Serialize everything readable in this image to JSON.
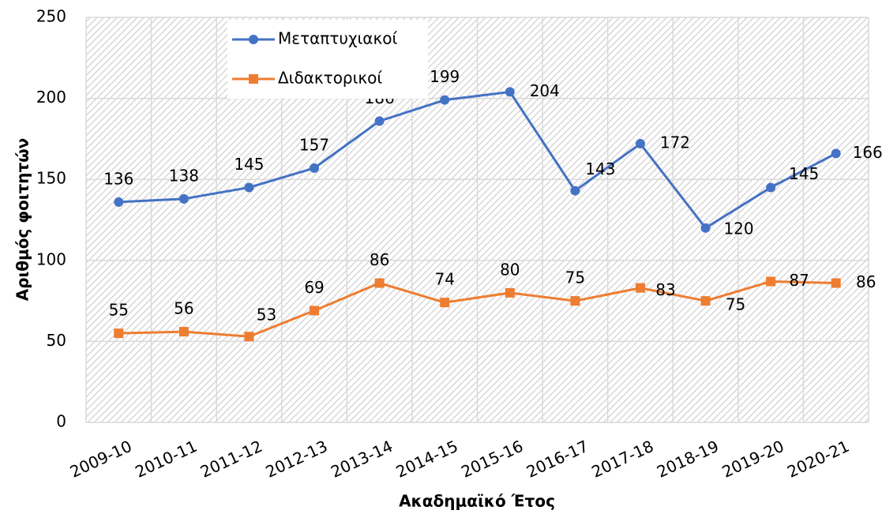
{
  "chart_data": {
    "type": "line",
    "xlabel": "Ακαδημαϊκό Έτος",
    "ylabel": "Αριθμός φοιτητών",
    "categories": [
      "2009-10",
      "2010-11",
      "2011-12",
      "2012-13",
      "2013-14",
      "2014-15",
      "2015-16",
      "2016-17",
      "2017-18",
      "2018-19",
      "2019-20",
      "2020-21"
    ],
    "series": [
      {
        "name": "Μεταπτυχιακοί",
        "color": "#4472c4",
        "marker": "circle",
        "values": [
          136,
          138,
          145,
          157,
          186,
          199,
          204,
          143,
          172,
          120,
          145,
          166
        ]
      },
      {
        "name": "Διδακτορικοί",
        "color": "#ed7d31",
        "marker": "square",
        "values": [
          55,
          56,
          53,
          69,
          86,
          74,
          80,
          75,
          83,
          75,
          87,
          86
        ]
      }
    ],
    "ylim": [
      0,
      250
    ],
    "yticks": [
      0,
      50,
      100,
      150,
      200,
      250
    ],
    "grid": true,
    "legend": "upper left"
  }
}
